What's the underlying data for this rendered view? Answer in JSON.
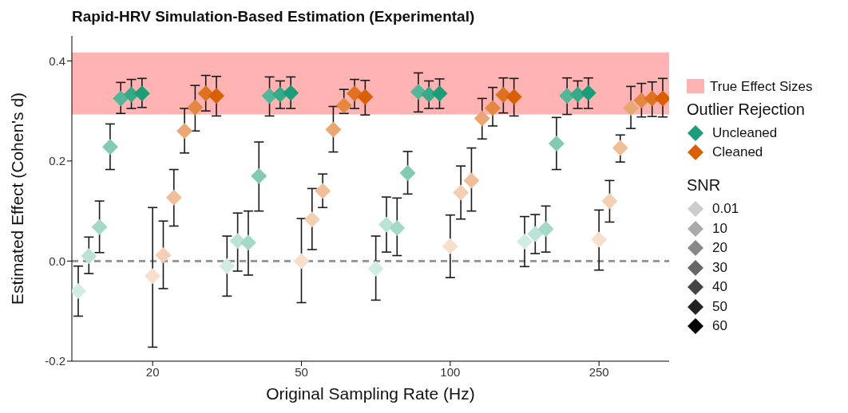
{
  "chart_data": {
    "type": "scatter",
    "title": "Rapid-HRV Simulation-Based Estimation (Experimental)",
    "xlabel": "Original Sampling Rate (Hz)",
    "ylabel": "Estimated Effect (Cohen's d)",
    "legend_title": "Outlier Rejection",
    "categories": [
      null,
      null,
      null,
      null,
      null,
      null,
      null,
      "20",
      null,
      null,
      null,
      null,
      null,
      null,
      null,
      null,
      null,
      null,
      null,
      null,
      null,
      "50",
      null,
      null,
      null,
      null,
      null,
      null,
      null,
      null,
      null,
      null,
      null,
      null,
      null,
      "100",
      null,
      null,
      null,
      null,
      null,
      null,
      null,
      null,
      null,
      null,
      null,
      null,
      null,
      "250",
      null,
      null,
      null,
      null,
      null,
      null
    ],
    "ylim": [
      -0.2,
      0.45
    ],
    "yticks": [
      -0.2,
      {
        "value": 0,
        "label": "0.0"
      },
      0.2,
      0.4
    ],
    "grid": false,
    "legend": "right",
    "marker": "diamond",
    "bands": [
      {
        "axis": "y",
        "from": 0.293,
        "to": 0.417,
        "label": "True Effect Sizes",
        "color": "#ffb3b3"
      }
    ],
    "ref_lines": [
      {
        "axis": "y",
        "value": 0,
        "label": null,
        "color": "#999999",
        "line_style": "dashed"
      }
    ],
    "annotations": [
      "SNR",
      "0.01",
      "10",
      "20",
      "30",
      "40",
      "50",
      "60"
    ],
    "series": [
      {
        "name": "Uncleaned",
        "color": "#1b9e77",
        "values": [
          -0.06,
          0.01,
          0.068,
          0.228,
          0.325,
          0.333,
          0.335,
          null,
          null,
          null,
          null,
          null,
          null,
          null,
          -0.01,
          0.04,
          0.037,
          0.17,
          0.33,
          0.333,
          0.336,
          null,
          null,
          null,
          null,
          null,
          null,
          null,
          -0.015,
          0.073,
          0.066,
          0.176,
          0.338,
          0.333,
          0.335,
          null,
          null,
          null,
          null,
          null,
          null,
          null,
          0.039,
          0.054,
          0.064,
          0.235,
          0.33,
          0.333,
          0.336,
          null,
          null,
          null,
          null,
          null,
          null,
          null
        ],
        "errors": [
          [
            -0.11,
            -0.01
          ],
          [
            -0.025,
            0.048
          ],
          [
            0.017,
            0.12
          ],
          [
            0.183,
            0.274
          ],
          [
            0.295,
            0.357
          ],
          [
            0.305,
            0.363
          ],
          [
            0.307,
            0.365
          ],
          null,
          null,
          null,
          null,
          null,
          null,
          null,
          [
            -0.07,
            0.05
          ],
          [
            -0.02,
            0.096
          ],
          [
            -0.028,
            0.1
          ],
          [
            0.1,
            0.238
          ],
          [
            0.29,
            0.368
          ],
          [
            0.305,
            0.36
          ],
          [
            0.305,
            0.368
          ],
          null,
          null,
          null,
          null,
          null,
          null,
          null,
          [
            -0.078,
            0.05
          ],
          [
            0.018,
            0.128
          ],
          [
            0.011,
            0.126
          ],
          [
            0.134,
            0.219
          ],
          [
            0.298,
            0.376
          ],
          [
            0.305,
            0.36
          ],
          [
            0.305,
            0.364
          ],
          null,
          null,
          null,
          null,
          null,
          null,
          null,
          [
            -0.011,
            0.089
          ],
          [
            0.015,
            0.093
          ],
          [
            0.018,
            0.11
          ],
          [
            0.183,
            0.287
          ],
          [
            0.293,
            0.366
          ],
          [
            0.305,
            0.36
          ],
          [
            0.305,
            0.366
          ],
          null,
          null,
          null,
          null,
          null,
          null,
          null
        ],
        "colors": [
          "#d1ece4",
          "#bbe2d6",
          "#a4d8c9",
          "#82cab4",
          "#54b699",
          "#36aa87",
          "#1b9e77",
          null,
          null,
          null,
          null,
          null,
          null,
          null,
          "#d1ece4",
          "#bbe2d6",
          "#a4d8c9",
          "#82cab4",
          "#54b699",
          "#36aa87",
          "#1b9e77",
          null,
          null,
          null,
          null,
          null,
          null,
          null,
          "#d1ece4",
          "#bbe2d6",
          "#a4d8c9",
          "#82cab4",
          "#54b699",
          "#36aa87",
          "#1b9e77",
          null,
          null,
          null,
          null,
          null,
          null,
          null,
          "#d1ece4",
          "#bbe2d6",
          "#a4d8c9",
          "#82cab4",
          "#54b699",
          "#36aa87",
          "#1b9e77",
          null,
          null,
          null,
          null,
          null,
          null,
          null
        ]
      },
      {
        "name": "Cleaned",
        "color": "#d95f02",
        "values": [
          null,
          null,
          null,
          null,
          null,
          null,
          null,
          -0.03,
          0.012,
          0.127,
          0.26,
          0.307,
          0.335,
          0.33,
          null,
          null,
          null,
          null,
          null,
          null,
          null,
          0.0,
          0.083,
          0.14,
          0.263,
          0.311,
          0.335,
          0.328,
          null,
          null,
          null,
          null,
          null,
          null,
          null,
          0.03,
          0.137,
          0.161,
          0.285,
          0.306,
          0.332,
          0.328,
          null,
          null,
          null,
          null,
          null,
          null,
          null,
          0.043,
          0.12,
          0.226,
          0.306,
          0.321,
          0.325,
          0.325
        ],
        "errors": [
          null,
          null,
          null,
          null,
          null,
          null,
          null,
          [
            -0.172,
            0.107
          ],
          [
            -0.055,
            0.08
          ],
          [
            0.07,
            0.183
          ],
          [
            0.216,
            0.305
          ],
          [
            0.26,
            0.351
          ],
          [
            0.3,
            0.371
          ],
          [
            0.29,
            0.369
          ],
          null,
          null,
          null,
          null,
          null,
          null,
          null,
          [
            -0.083,
            0.085
          ],
          [
            0.023,
            0.145
          ],
          [
            0.107,
            0.174
          ],
          [
            0.218,
            0.309
          ],
          [
            0.295,
            0.343
          ],
          [
            0.305,
            0.363
          ],
          [
            0.292,
            0.361
          ],
          null,
          null,
          null,
          null,
          null,
          null,
          null,
          [
            -0.033,
            0.092
          ],
          [
            0.084,
            0.19
          ],
          [
            0.1,
            0.226
          ],
          [
            0.244,
            0.325
          ],
          [
            0.27,
            0.347
          ],
          [
            0.296,
            0.366
          ],
          [
            0.29,
            0.365
          ],
          null,
          null,
          null,
          null,
          null,
          null,
          null,
          [
            -0.018,
            0.102
          ],
          [
            0.078,
            0.161
          ],
          [
            0.198,
            0.252
          ],
          [
            0.265,
            0.349
          ],
          [
            0.288,
            0.355
          ],
          [
            0.289,
            0.358
          ],
          [
            0.288,
            0.365
          ]
        ],
        "colors": [
          null,
          null,
          null,
          null,
          null,
          null,
          null,
          "#f7dfcc",
          "#f4cfb3",
          "#f0bf9a",
          "#eaa774",
          "#e38741",
          "#de7220",
          "#d95f02",
          null,
          null,
          null,
          null,
          null,
          null,
          null,
          "#f7dfcc",
          "#f4cfb3",
          "#f0bf9a",
          "#eaa774",
          "#e38741",
          "#de7220",
          "#d95f02",
          null,
          null,
          null,
          null,
          null,
          null,
          null,
          "#f7dfcc",
          "#f4cfb3",
          "#f0bf9a",
          "#eaa774",
          "#e38741",
          "#de7220",
          "#d95f02",
          null,
          null,
          null,
          null,
          null,
          null,
          null,
          "#f7dfcc",
          "#f4cfb3",
          "#f0bf9a",
          "#eaa774",
          "#e38741",
          "#de7220",
          "#d95f02"
        ]
      }
    ]
  }
}
